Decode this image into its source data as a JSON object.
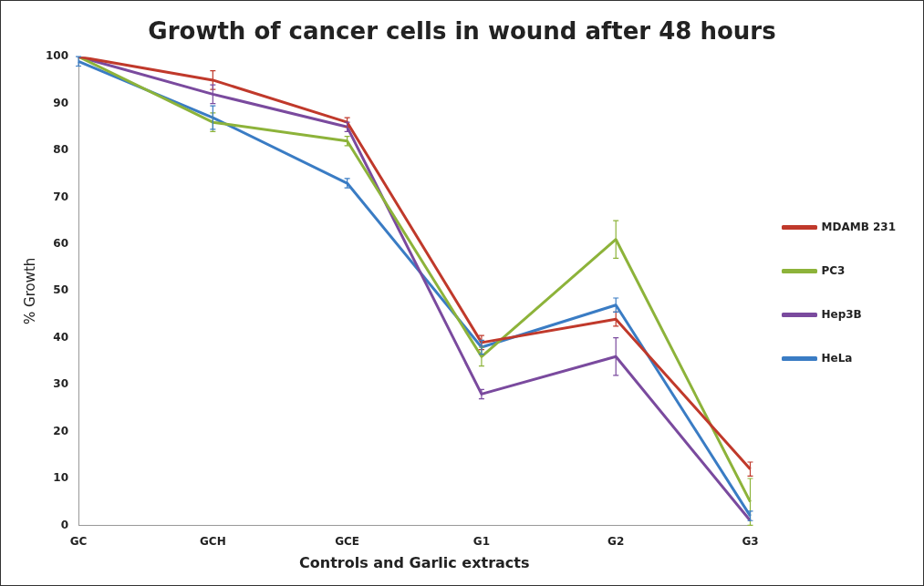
{
  "chart_data": {
    "type": "line",
    "title": "Growth of cancer cells in wound after 48 hours",
    "xlabel": "Controls and Garlic extracts",
    "ylabel": "% Growth",
    "categories": [
      "GC",
      "GCH",
      "GCE",
      "G1",
      "G2",
      "G3"
    ],
    "series": [
      {
        "name": "MDAMB 231",
        "color": "#c0392b",
        "values": [
          100,
          95,
          86,
          39,
          44,
          12
        ],
        "errors": [
          null,
          2,
          1,
          1.5,
          1.5,
          1.5
        ]
      },
      {
        "name": "PC3",
        "color": "#8db33a",
        "values": [
          100,
          86,
          82,
          36,
          61,
          5
        ],
        "errors": [
          null,
          2,
          1,
          2,
          4,
          5
        ]
      },
      {
        "name": "Hep3B",
        "color": "#7a4a9e",
        "values": [
          100,
          92,
          85,
          28,
          36,
          1
        ],
        "errors": [
          null,
          2,
          1,
          1,
          4,
          null
        ]
      },
      {
        "name": "HeLa",
        "color": "#3a7cc4",
        "values": [
          99,
          87,
          73,
          38,
          47,
          2
        ],
        "errors": [
          1,
          2.5,
          1,
          1.5,
          1.5,
          1
        ]
      }
    ],
    "ylim": [
      0,
      100
    ],
    "yticks": [
      0,
      10,
      20,
      30,
      40,
      50,
      60,
      70,
      80,
      90,
      100
    ],
    "grid": false,
    "legend": "right",
    "marker": "none",
    "line_style": "solid"
  }
}
